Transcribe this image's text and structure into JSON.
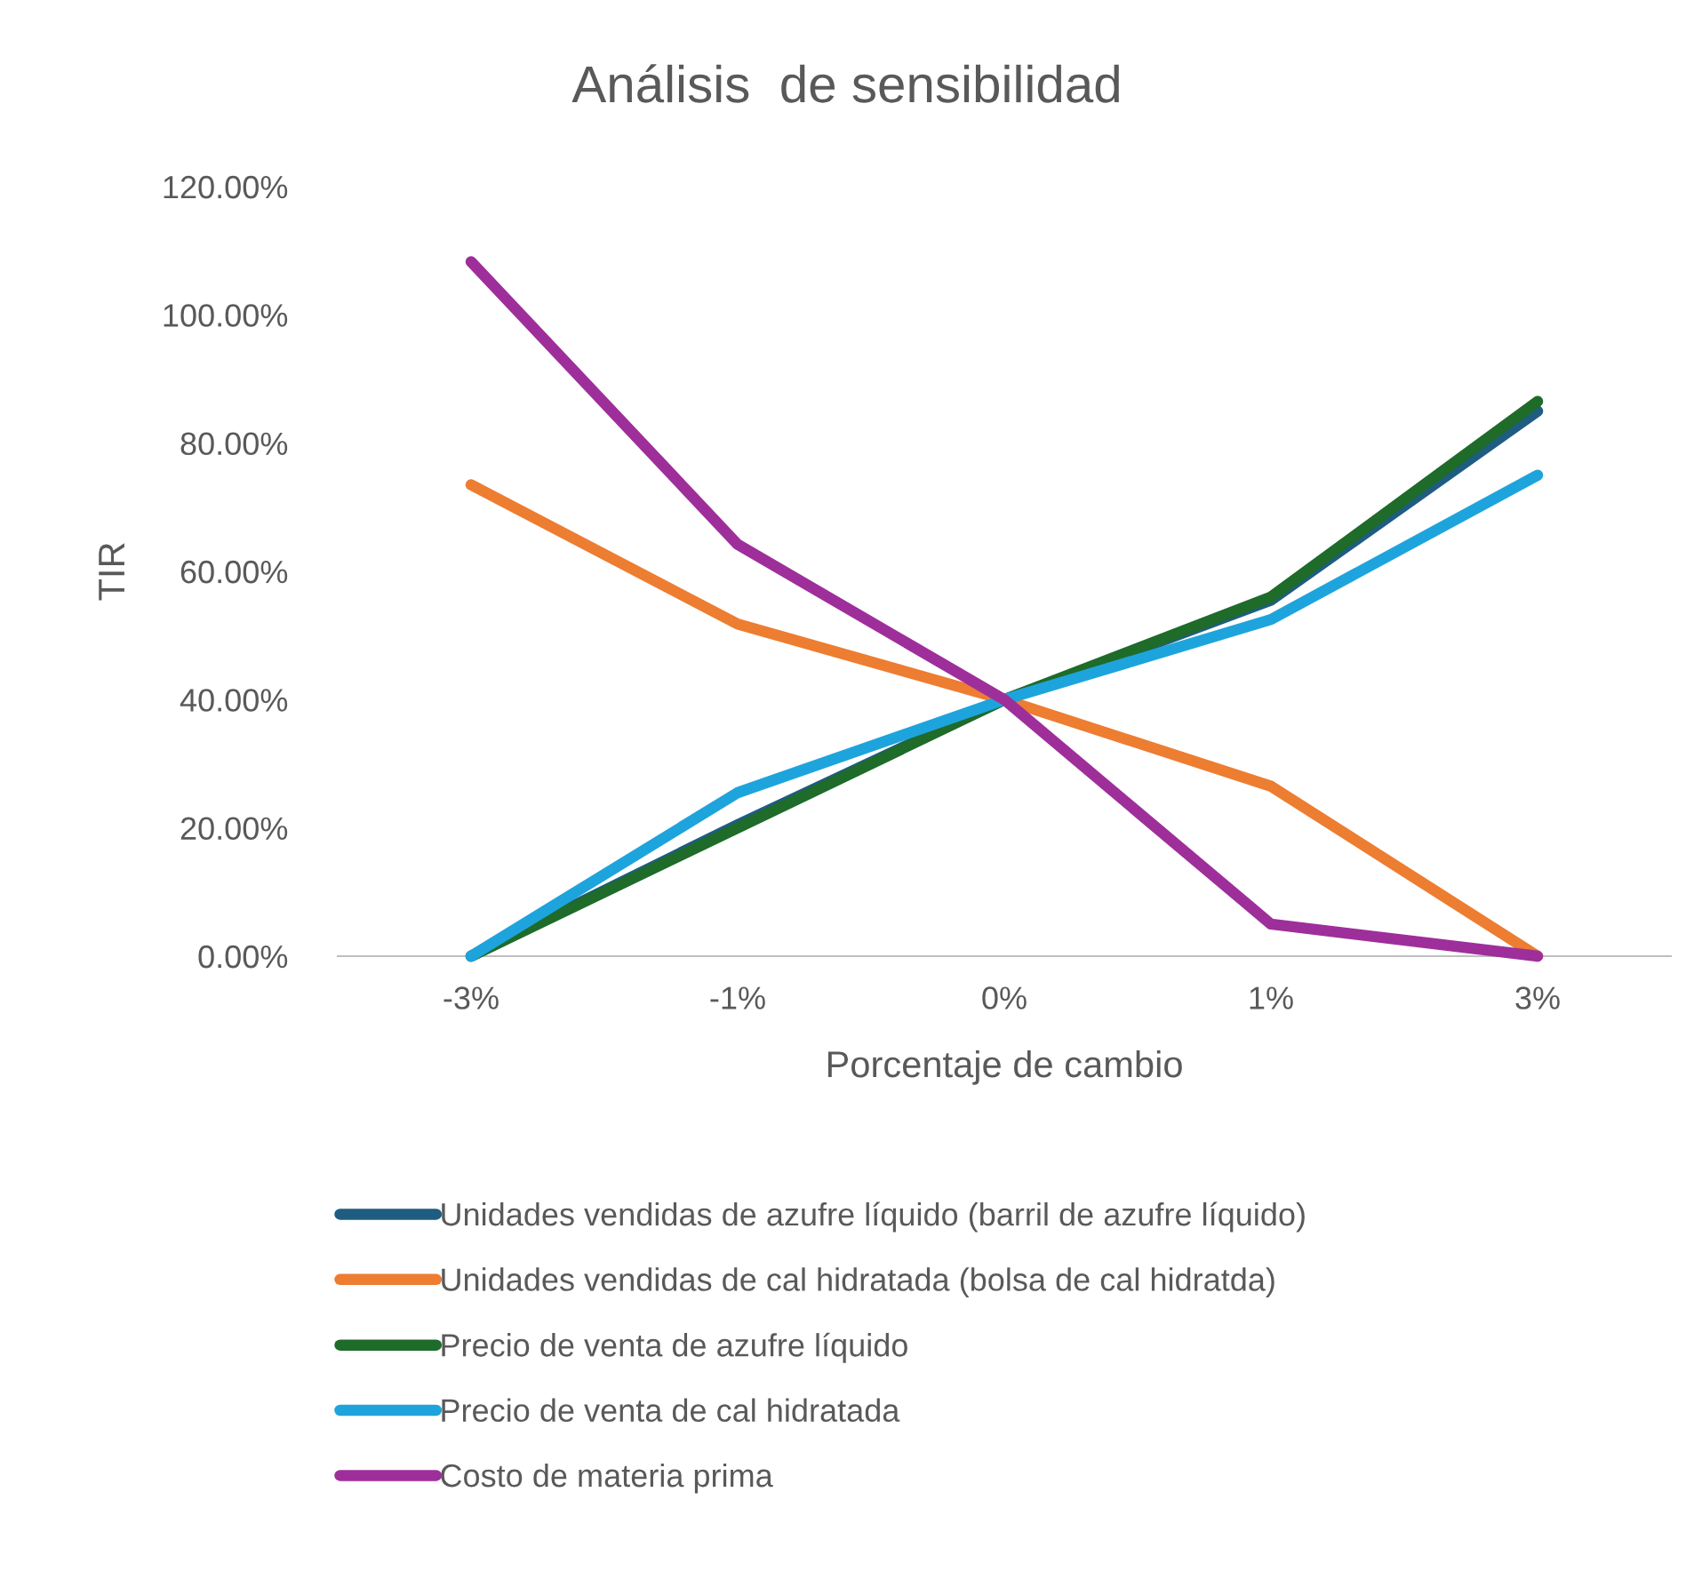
{
  "chart_data": {
    "type": "line",
    "title": "Análisis  de sensibilidad",
    "xlabel": "Porcentaje de cambio",
    "ylabel": "TIR",
    "categories": [
      "-3%",
      "-1%",
      "0%",
      "1%",
      "3%"
    ],
    "series": [
      {
        "name": "Unidades vendidas de azufre líquido (barril de azufre líquido)",
        "color": "#1f5c82",
        "values": [
          0,
          20.5,
          40,
          55.5,
          85
        ]
      },
      {
        "name": "Unidades vendidas de cal hidratada (bolsa de cal hidratda)",
        "color": "#ed7d31",
        "values": [
          73.5,
          51.8,
          40,
          26.5,
          0
        ]
      },
      {
        "name": "Precio de venta de azufre líquido",
        "color": "#1e6b2a",
        "values": [
          0,
          20,
          40,
          56,
          86.5
        ]
      },
      {
        "name": "Precio de venta de cal hidratada",
        "color": "#1ea4dc",
        "values": [
          0,
          25.5,
          40,
          52.5,
          75
        ]
      },
      {
        "name": "Costo de materia prima",
        "color": "#9e2f9a",
        "values": [
          108.3,
          64.2,
          40,
          5,
          0
        ]
      }
    ],
    "ylim": [
      0,
      120
    ],
    "yticks": [
      {
        "value": 0,
        "label": "0.00%"
      },
      {
        "value": 20,
        "label": "20.00%"
      },
      {
        "value": 40,
        "label": "40.00%"
      },
      {
        "value": 60,
        "label": "60.00%"
      },
      {
        "value": 80,
        "label": "80.00%"
      },
      {
        "value": 100,
        "label": "100.00%"
      },
      {
        "value": 120,
        "label": "120.00%"
      }
    ],
    "legend": "bottom",
    "marker": "none",
    "line_style": "solid"
  }
}
